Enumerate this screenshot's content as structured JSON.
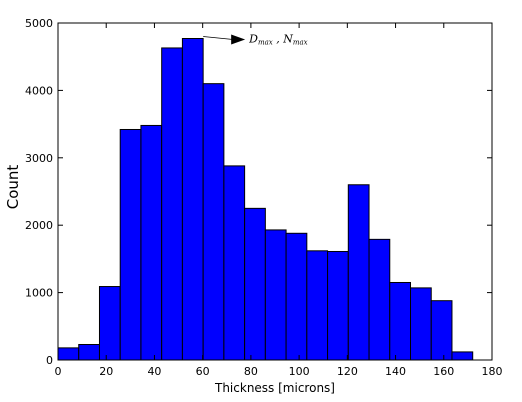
{
  "chart_data": {
    "type": "bar",
    "xlabel": "Thickness [microns]",
    "ylabel": "Count",
    "xlim": [
      0,
      180
    ],
    "ylim": [
      0,
      5000
    ],
    "grid": false,
    "legend": "none",
    "x_ticks": [
      0,
      20,
      40,
      60,
      80,
      100,
      120,
      140,
      160,
      180
    ],
    "y_ticks": [
      0,
      1000,
      2000,
      3000,
      4000,
      5000
    ],
    "bin_edges": [
      0,
      8.6,
      17.2,
      25.8,
      34.4,
      43,
      51.6,
      60.2,
      68.8,
      77.4,
      86,
      94.6,
      103.2,
      111.8,
      120.4,
      129,
      137.6,
      146.2,
      154.8,
      163.4,
      172
    ],
    "values": [
      180,
      230,
      1090,
      3420,
      3480,
      4630,
      4770,
      4100,
      2880,
      2250,
      1930,
      1880,
      1620,
      1610,
      2600,
      1790,
      1150,
      1070,
      880,
      120
    ],
    "bar_color": "#0000ff",
    "edge_color": "#000000",
    "annotation": {
      "text_main": "D",
      "text_main_sub": "max",
      "text_sep": " , ",
      "text_second": "N",
      "text_second_sub": "max",
      "x": 60.2,
      "y": 4770
    }
  }
}
